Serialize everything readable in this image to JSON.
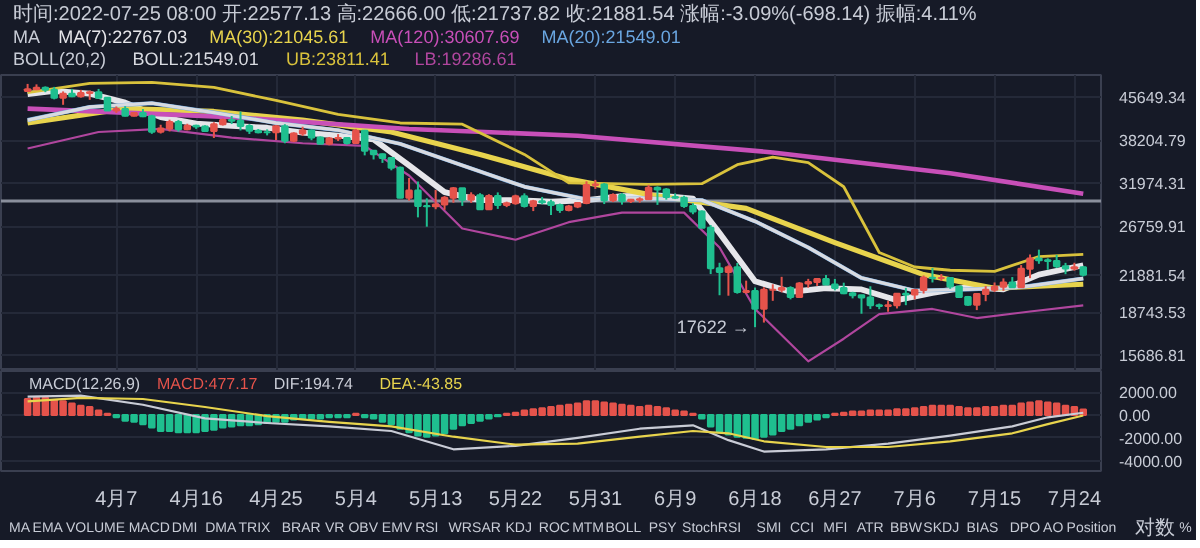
{
  "chart_data": [
    {
      "type": "candlestick",
      "annotations": [
        "时间:2022-07-25 08:00 开:22577.13 高:22666.00 低:21737.82 收:21881.54 涨幅:-3.09%(-698.14) 振幅:4.11%",
        "MA",
        "BOLL(20,2)",
        {
          "text": "17622 →",
          "x": "2022-06-18",
          "y": 17622
        }
      ],
      "x": [
        "2022-03-28",
        "2022-03-29",
        "2022-03-30",
        "2022-03-31",
        "2022-04-01",
        "2022-04-02",
        "2022-04-03",
        "2022-04-04",
        "2022-04-05",
        "2022-04-06",
        "2022-04-07",
        "2022-04-08",
        "2022-04-09",
        "2022-04-10",
        "2022-04-11",
        "2022-04-12",
        "2022-04-13",
        "2022-04-14",
        "2022-04-15",
        "2022-04-16",
        "2022-04-17",
        "2022-04-18",
        "2022-04-19",
        "2022-04-20",
        "2022-04-21",
        "2022-04-22",
        "2022-04-23",
        "2022-04-24",
        "2022-04-25",
        "2022-04-26",
        "2022-04-27",
        "2022-04-28",
        "2022-04-29",
        "2022-04-30",
        "2022-05-01",
        "2022-05-02",
        "2022-05-03",
        "2022-05-04",
        "2022-05-05",
        "2022-05-06",
        "2022-05-07",
        "2022-05-08",
        "2022-05-09",
        "2022-05-10",
        "2022-05-11",
        "2022-05-12",
        "2022-05-13",
        "2022-05-14",
        "2022-05-15",
        "2022-05-16",
        "2022-05-17",
        "2022-05-18",
        "2022-05-19",
        "2022-05-20",
        "2022-05-21",
        "2022-05-22",
        "2022-05-23",
        "2022-05-24",
        "2022-05-25",
        "2022-05-26",
        "2022-05-27",
        "2022-05-28",
        "2022-05-29",
        "2022-05-30",
        "2022-05-31",
        "2022-06-01",
        "2022-06-02",
        "2022-06-03",
        "2022-06-04",
        "2022-06-05",
        "2022-06-06",
        "2022-06-07",
        "2022-06-08",
        "2022-06-09",
        "2022-06-10",
        "2022-06-11",
        "2022-06-12",
        "2022-06-13",
        "2022-06-14",
        "2022-06-15",
        "2022-06-16",
        "2022-06-17",
        "2022-06-18",
        "2022-06-19",
        "2022-06-20",
        "2022-06-21",
        "2022-06-22",
        "2022-06-23",
        "2022-06-24",
        "2022-06-25",
        "2022-06-26",
        "2022-06-27",
        "2022-06-28",
        "2022-06-29",
        "2022-06-30",
        "2022-07-01",
        "2022-07-02",
        "2022-07-03",
        "2022-07-04",
        "2022-07-05",
        "2022-07-06",
        "2022-07-07",
        "2022-07-08",
        "2022-07-09",
        "2022-07-10",
        "2022-07-11",
        "2022-07-12",
        "2022-07-13",
        "2022-07-14",
        "2022-07-15",
        "2022-07-16",
        "2022-07-17",
        "2022-07-18",
        "2022-07-19",
        "2022-07-20",
        "2022-07-21",
        "2022-07-22",
        "2022-07-23",
        "2022-07-24",
        "2022-07-25"
      ],
      "ohlc": [
        [
          46820,
          48190,
          46660,
          47130
        ],
        [
          47130,
          48100,
          46960,
          47450
        ],
        [
          47450,
          47700,
          46570,
          47060
        ],
        [
          47060,
          47600,
          45200,
          45510
        ],
        [
          45510,
          46720,
          44200,
          46280
        ],
        [
          46280,
          47200,
          45620,
          45810
        ],
        [
          45810,
          47030,
          45530,
          46410
        ],
        [
          46410,
          46890,
          45120,
          46580
        ],
        [
          46580,
          47200,
          45350,
          45500
        ],
        [
          45500,
          45500,
          43120,
          43170
        ],
        [
          43170,
          43900,
          42730,
          43440
        ],
        [
          43440,
          43970,
          42110,
          42250
        ],
        [
          42250,
          42800,
          42130,
          42750
        ],
        [
          42750,
          43430,
          42000,
          42160
        ],
        [
          42160,
          42420,
          39200,
          39530
        ],
        [
          39530,
          40700,
          39250,
          40080
        ],
        [
          40080,
          41560,
          39590,
          41150
        ],
        [
          41150,
          41500,
          39550,
          39940
        ],
        [
          39940,
          40870,
          39770,
          40550
        ],
        [
          40550,
          40710,
          40010,
          40400
        ],
        [
          40400,
          40620,
          39550,
          39680
        ],
        [
          39680,
          41130,
          38540,
          40800
        ],
        [
          40800,
          41760,
          40570,
          41500
        ],
        [
          41500,
          42200,
          40820,
          41360
        ],
        [
          41360,
          42980,
          39750,
          40480
        ],
        [
          40480,
          40800,
          39180,
          39710
        ],
        [
          39710,
          39980,
          39280,
          39470
        ],
        [
          39470,
          39930,
          38950,
          39450
        ],
        [
          39450,
          40620,
          38200,
          40430
        ],
        [
          40430,
          40800,
          37700,
          38110
        ],
        [
          38110,
          39460,
          37880,
          39240
        ],
        [
          39240,
          40370,
          38880,
          39740
        ],
        [
          39740,
          39920,
          38180,
          38600
        ],
        [
          38600,
          38800,
          37580,
          37640
        ],
        [
          37640,
          38690,
          37390,
          38470
        ],
        [
          38470,
          39150,
          38060,
          38520
        ],
        [
          38520,
          38640,
          37500,
          37730
        ],
        [
          37730,
          40000,
          37680,
          39690
        ],
        [
          39690,
          39840,
          35860,
          36550
        ],
        [
          36550,
          36650,
          35260,
          36010
        ],
        [
          36010,
          36140,
          34760,
          35470
        ],
        [
          35470,
          35500,
          33710,
          34060
        ],
        [
          34060,
          34240,
          30030,
          30100
        ],
        [
          30100,
          32660,
          29730,
          31010
        ],
        [
          31010,
          32190,
          27750,
          29100
        ],
        [
          29100,
          30030,
          26700,
          29050
        ],
        [
          29050,
          31080,
          28700,
          29280
        ],
        [
          29280,
          30300,
          28630,
          30080
        ],
        [
          30080,
          31460,
          29480,
          31300
        ],
        [
          31300,
          31300,
          29100,
          29860
        ],
        [
          29860,
          30780,
          29460,
          30420
        ],
        [
          30420,
          30670,
          28650,
          28700
        ],
        [
          28700,
          30540,
          28690,
          30300
        ],
        [
          30300,
          30770,
          28740,
          29200
        ],
        [
          29200,
          29610,
          28950,
          29430
        ],
        [
          29430,
          30480,
          29240,
          30280
        ],
        [
          30280,
          30650,
          28900,
          29100
        ],
        [
          29100,
          29830,
          28480,
          29650
        ],
        [
          29650,
          30200,
          29300,
          29540
        ],
        [
          29540,
          29860,
          28020,
          29200
        ],
        [
          29200,
          29380,
          28270,
          28620
        ],
        [
          28620,
          29220,
          28450,
          29020
        ],
        [
          29020,
          29540,
          28830,
          29450
        ],
        [
          29450,
          32220,
          29300,
          31720
        ],
        [
          31720,
          32400,
          31220,
          31790
        ],
        [
          31790,
          31980,
          29320,
          29800
        ],
        [
          29800,
          30650,
          29570,
          30450
        ],
        [
          30450,
          30680,
          29250,
          29700
        ],
        [
          29700,
          29950,
          29450,
          29860
        ],
        [
          29860,
          30150,
          29500,
          29910
        ],
        [
          29910,
          31750,
          29880,
          31370
        ],
        [
          31370,
          31550,
          29220,
          31130
        ],
        [
          31130,
          31330,
          29860,
          30200
        ],
        [
          30200,
          30650,
          29930,
          30110
        ],
        [
          30110,
          30350,
          28860,
          29090
        ],
        [
          29090,
          29430,
          28110,
          28420
        ],
        [
          28420,
          28560,
          26560,
          26570
        ],
        [
          26570,
          26880,
          21950,
          22490
        ],
        [
          22490,
          23000,
          20110,
          22140
        ],
        [
          22140,
          22760,
          20070,
          22580
        ],
        [
          22580,
          22980,
          20240,
          20380
        ],
        [
          20380,
          21360,
          20250,
          20470
        ],
        [
          20470,
          20760,
          17622,
          19020
        ],
        [
          19020,
          20780,
          17960,
          20570
        ],
        [
          20570,
          21040,
          19650,
          20580
        ],
        [
          20580,
          21700,
          20350,
          20720
        ],
        [
          20720,
          20870,
          19770,
          19970
        ],
        [
          19970,
          21230,
          19900,
          21100
        ],
        [
          21100,
          21520,
          20740,
          21230
        ],
        [
          21230,
          21580,
          20900,
          21500
        ],
        [
          21500,
          21860,
          21000,
          21030
        ],
        [
          21030,
          21510,
          20520,
          20730
        ],
        [
          20730,
          21180,
          20200,
          20280
        ],
        [
          20280,
          20400,
          19850,
          20110
        ],
        [
          20110,
          20140,
          18630,
          19930
        ],
        [
          19930,
          20870,
          19000,
          19290
        ],
        [
          19290,
          19430,
          18980,
          19240
        ],
        [
          19240,
          19650,
          18780,
          19300
        ],
        [
          19300,
          20290,
          19040,
          20230
        ],
        [
          20230,
          20730,
          19300,
          20180
        ],
        [
          20180,
          20650,
          19770,
          20550
        ],
        [
          20550,
          21820,
          20250,
          21620
        ],
        [
          21620,
          22500,
          21200,
          21590
        ],
        [
          21590,
          21950,
          21330,
          21600
        ],
        [
          21600,
          21600,
          20650,
          20850
        ],
        [
          20850,
          20870,
          19880,
          19960
        ],
        [
          19960,
          20050,
          19250,
          19330
        ],
        [
          19330,
          20250,
          18910,
          20210
        ],
        [
          20210,
          20880,
          19620,
          20570
        ],
        [
          20570,
          21200,
          20390,
          20830
        ],
        [
          20830,
          21560,
          20480,
          21200
        ],
        [
          21200,
          21680,
          20770,
          20790
        ],
        [
          20790,
          22780,
          20760,
          22430
        ],
        [
          22430,
          23800,
          21580,
          23400
        ],
        [
          23400,
          24280,
          22900,
          23230
        ],
        [
          23230,
          23430,
          22340,
          23160
        ],
        [
          23160,
          23760,
          22500,
          22680
        ],
        [
          22680,
          22990,
          21940,
          22450
        ],
        [
          22450,
          23000,
          22260,
          22580
        ],
        [
          22577.13,
          22666,
          21737.82,
          21881.54
        ]
      ],
      "colors": [
        "#e5534b",
        "#e5534b",
        "#1fbf8f",
        "#1fbf8f",
        "#e5534b",
        "#1fbf8f",
        "#e5534b",
        "#e5534b",
        "#1fbf8f",
        "#1fbf8f",
        "#e5534b",
        "#1fbf8f",
        "#e5534b",
        "#1fbf8f",
        "#1fbf8f",
        "#e5534b",
        "#e5534b",
        "#1fbf8f",
        "#e5534b",
        "#1fbf8f",
        "#1fbf8f",
        "#e5534b",
        "#e5534b",
        "#1fbf8f",
        "#1fbf8f",
        "#1fbf8f",
        "#1fbf8f",
        "#1fbf8f",
        "#e5534b",
        "#1fbf8f",
        "#e5534b",
        "#e5534b",
        "#1fbf8f",
        "#1fbf8f",
        "#e5534b",
        "#e5534b",
        "#1fbf8f",
        "#e5534b",
        "#1fbf8f",
        "#1fbf8f",
        "#1fbf8f",
        "#1fbf8f",
        "#1fbf8f",
        "#e5534b",
        "#1fbf8f",
        "#1fbf8f",
        "#e5534b",
        "#e5534b",
        "#e5534b",
        "#1fbf8f",
        "#e5534b",
        "#1fbf8f",
        "#e5534b",
        "#1fbf8f",
        "#e5534b",
        "#e5534b",
        "#1fbf8f",
        "#e5534b",
        "#1fbf8f",
        "#1fbf8f",
        "#1fbf8f",
        "#e5534b",
        "#e5534b",
        "#e5534b",
        "#e5534b",
        "#1fbf8f",
        "#e5534b",
        "#1fbf8f",
        "#e5534b",
        "#e5534b",
        "#e5534b",
        "#1fbf8f",
        "#1fbf8f",
        "#1fbf8f",
        "#1fbf8f",
        "#1fbf8f",
        "#1fbf8f",
        "#1fbf8f",
        "#1fbf8f",
        "#e5534b",
        "#1fbf8f",
        "#e5534b",
        "#1fbf8f",
        "#e5534b",
        "#e5534b",
        "#e5534b",
        "#1fbf8f",
        "#e5534b",
        "#e5534b",
        "#e5534b",
        "#1fbf8f",
        "#1fbf8f",
        "#1fbf8f",
        "#1fbf8f",
        "#1fbf8f",
        "#1fbf8f",
        "#1fbf8f",
        "#e5534b",
        "#e5534b",
        "#1fbf8f",
        "#e5534b",
        "#e5534b",
        "#1fbf8f",
        "#e5534b",
        "#1fbf8f",
        "#1fbf8f",
        "#1fbf8f",
        "#e5534b",
        "#e5534b",
        "#e5534b",
        "#e5534b",
        "#1fbf8f",
        "#e5534b",
        "#e5534b",
        "#1fbf8f",
        "#1fbf8f",
        "#1fbf8f",
        "#1fbf8f",
        "#e5534b",
        "#1fbf8f"
      ],
      "series": [
        {
          "name": "MA(7):22767.03",
          "type": "line",
          "color": "#e6e6ea",
          "x": [
            "2022-03-28",
            "2022-03-31",
            "2022-04-04",
            "2022-04-08",
            "2022-04-12",
            "2022-04-16",
            "2022-04-20",
            "2022-04-24",
            "2022-04-28",
            "2022-05-02",
            "2022-05-06",
            "2022-05-10",
            "2022-05-14",
            "2022-05-18",
            "2022-05-22",
            "2022-05-26",
            "2022-05-30",
            "2022-06-03",
            "2022-06-07",
            "2022-06-11",
            "2022-06-14",
            "2022-06-18",
            "2022-06-22",
            "2022-06-26",
            "2022-06-30",
            "2022-07-04",
            "2022-07-08",
            "2022-07-12",
            "2022-07-16",
            "2022-07-20",
            "2022-07-25"
          ],
          "values": [
            46200,
            46800,
            46300,
            44600,
            42000,
            40900,
            40500,
            40200,
            39400,
            38900,
            38300,
            34400,
            30800,
            29800,
            29800,
            29600,
            29800,
            30300,
            30400,
            30000,
            26000,
            21300,
            20400,
            20700,
            20600,
            19700,
            20300,
            20800,
            20600,
            21900,
            22767.03
          ]
        },
        {
          "name": "MA(30):21045.61",
          "type": "line",
          "color": "#e8d44d",
          "x": [
            "2022-03-28",
            "2022-04-08",
            "2022-04-18",
            "2022-04-28",
            "2022-05-08",
            "2022-05-18",
            "2022-05-28",
            "2022-06-07",
            "2022-06-17",
            "2022-06-27",
            "2022-07-07",
            "2022-07-15",
            "2022-07-25"
          ],
          "values": [
            41000,
            43500,
            43000,
            41500,
            39500,
            36000,
            32500,
            30300,
            28800,
            25000,
            21900,
            20700,
            21045.61
          ]
        },
        {
          "name": "MA(120):30607.69",
          "type": "line",
          "color": "#c84fb8",
          "x": [
            "2022-03-28",
            "2022-04-20",
            "2022-05-10",
            "2022-05-29",
            "2022-06-20",
            "2022-07-10",
            "2022-07-25"
          ],
          "values": [
            43500,
            42000,
            40000,
            38900,
            36300,
            33300,
            30607.69
          ]
        },
        {
          "name": "MA(20):21549.01",
          "type": "line",
          "color": "#6aa6e0",
          "x": [
            "2022-03-28",
            "2022-04-04",
            "2022-04-11",
            "2022-04-18",
            "2022-04-25",
            "2022-05-02",
            "2022-05-09",
            "2022-05-16",
            "2022-05-23",
            "2022-05-30",
            "2022-06-06",
            "2022-06-12",
            "2022-06-18",
            "2022-06-24",
            "2022-06-30",
            "2022-07-06",
            "2022-07-12",
            "2022-07-18",
            "2022-07-25"
          ],
          "values": [
            41500,
            43800,
            44500,
            42800,
            41000,
            39800,
            37600,
            34400,
            31500,
            29900,
            30000,
            29800,
            27300,
            24500,
            21600,
            20500,
            20600,
            20800,
            21549.01
          ]
        },
        {
          "name": "BOLL:21549.01",
          "type": "line",
          "color": "#d8dae0",
          "x": [
            "2022-03-28",
            "2022-04-04",
            "2022-04-11",
            "2022-04-18",
            "2022-04-25",
            "2022-05-02",
            "2022-05-09",
            "2022-05-16",
            "2022-05-23",
            "2022-05-30",
            "2022-06-06",
            "2022-06-12",
            "2022-06-18",
            "2022-06-24",
            "2022-06-30",
            "2022-07-06",
            "2022-07-12",
            "2022-07-18",
            "2022-07-25"
          ],
          "values": [
            41500,
            43800,
            44500,
            42800,
            41000,
            39800,
            37600,
            34400,
            31500,
            29900,
            30000,
            29800,
            27300,
            24500,
            21600,
            20500,
            20600,
            20800,
            21549.01
          ]
        },
        {
          "name": "UB:23811.41",
          "type": "line",
          "color": "#d9c23c",
          "x": [
            "2022-03-28",
            "2022-04-04",
            "2022-04-11",
            "2022-04-18",
            "2022-04-25",
            "2022-05-02",
            "2022-05-09",
            "2022-05-16",
            "2022-05-23",
            "2022-05-28",
            "2022-06-06",
            "2022-06-12",
            "2022-06-16",
            "2022-06-20",
            "2022-06-24",
            "2022-06-28",
            "2022-07-02",
            "2022-07-06",
            "2022-07-10",
            "2022-07-15",
            "2022-07-20",
            "2022-07-25"
          ],
          "values": [
            46500,
            48300,
            48500,
            47500,
            45000,
            42500,
            41000,
            40800,
            36000,
            32000,
            31800,
            31900,
            34500,
            35600,
            34800,
            31500,
            24000,
            22600,
            22300,
            22200,
            23600,
            23811.41
          ]
        },
        {
          "name": "LB:19286.61",
          "type": "line",
          "color": "#b0469e",
          "x": [
            "2022-03-28",
            "2022-04-05",
            "2022-04-12",
            "2022-04-20",
            "2022-04-28",
            "2022-05-05",
            "2022-05-10",
            "2022-05-16",
            "2022-05-22",
            "2022-05-28",
            "2022-06-03",
            "2022-06-10",
            "2022-06-14",
            "2022-06-18",
            "2022-06-24",
            "2022-06-28",
            "2022-07-02",
            "2022-07-08",
            "2022-07-13",
            "2022-07-19",
            "2022-07-25"
          ],
          "values": [
            36900,
            39500,
            40000,
            38600,
            37700,
            37300,
            33000,
            26500,
            25300,
            27200,
            28300,
            28300,
            24500,
            19000,
            15300,
            16800,
            18600,
            19000,
            18300,
            18800,
            19286.61
          ]
        }
      ],
      "ref_lines": [
        {
          "axis": "y",
          "value": 29700,
          "color": "#8a8f9c"
        }
      ],
      "xlim": [
        "2022-03-25",
        "2022-07-27"
      ],
      "xticks": [
        {
          "value": "2022-04-07",
          "label": null
        },
        {
          "value": "2022-04-16",
          "label": null
        },
        {
          "value": "2022-04-25",
          "label": null
        },
        {
          "value": "2022-05-04",
          "label": null
        },
        {
          "value": "2022-05-13",
          "label": null
        },
        {
          "value": "2022-05-22",
          "label": null
        },
        {
          "value": "2022-05-31",
          "label": null
        },
        {
          "value": "2022-06-09",
          "label": null
        },
        {
          "value": "2022-06-18",
          "label": null
        },
        {
          "value": "2022-06-27",
          "label": null
        },
        {
          "value": "2022-07-06",
          "label": null
        },
        {
          "value": "2022-07-15",
          "label": null
        },
        {
          "value": "2022-07-24",
          "label": null
        }
      ],
      "ylim": [
        14700,
        50000
      ],
      "yticks": [
        45649.34,
        38204.79,
        31974.31,
        26759.91,
        21881.54,
        18743.53,
        15686.81
      ],
      "log": true,
      "grid": true,
      "tick_labels": "y"
    },
    {
      "type": "bar",
      "title": "MACD(12,26,9)",
      "annotations": [
        "MA",
        "EMA",
        "VOLUME",
        "MACD",
        "DMI",
        "DMA",
        "TRIX",
        "BRAR",
        "VR",
        "OBV",
        "EMV",
        "RSI",
        "WR",
        "SAR",
        "KDJ",
        "ROC",
        "MTM",
        "BOLL",
        "PSY",
        "StochRSI",
        "SMI",
        "CCI",
        "MFI",
        "ATR",
        "BBW",
        "SKDJ",
        "BIAS",
        "DPO",
        "AO",
        "Position",
        "对数",
        "%"
      ],
      "x": [
        "2022-03-28",
        "2022-03-29",
        "2022-03-30",
        "2022-03-31",
        "2022-04-01",
        "2022-04-02",
        "2022-04-03",
        "2022-04-04",
        "2022-04-05",
        "2022-04-06",
        "2022-04-07",
        "2022-04-08",
        "2022-04-09",
        "2022-04-10",
        "2022-04-11",
        "2022-04-12",
        "2022-04-13",
        "2022-04-14",
        "2022-04-15",
        "2022-04-16",
        "2022-04-17",
        "2022-04-18",
        "2022-04-19",
        "2022-04-20",
        "2022-04-21",
        "2022-04-22",
        "2022-04-23",
        "2022-04-24",
        "2022-04-25",
        "2022-04-26",
        "2022-04-27",
        "2022-04-28",
        "2022-04-29",
        "2022-04-30",
        "2022-05-01",
        "2022-05-02",
        "2022-05-03",
        "2022-05-04",
        "2022-05-05",
        "2022-05-06",
        "2022-05-07",
        "2022-05-08",
        "2022-05-09",
        "2022-05-10",
        "2022-05-11",
        "2022-05-12",
        "2022-05-13",
        "2022-05-14",
        "2022-05-15",
        "2022-05-16",
        "2022-05-17",
        "2022-05-18",
        "2022-05-19",
        "2022-05-20",
        "2022-05-21",
        "2022-05-22",
        "2022-05-23",
        "2022-05-24",
        "2022-05-25",
        "2022-05-26",
        "2022-05-27",
        "2022-05-28",
        "2022-05-29",
        "2022-05-30",
        "2022-05-31",
        "2022-06-01",
        "2022-06-02",
        "2022-06-03",
        "2022-06-04",
        "2022-06-05",
        "2022-06-06",
        "2022-06-07",
        "2022-06-08",
        "2022-06-09",
        "2022-06-10",
        "2022-06-11",
        "2022-06-12",
        "2022-06-13",
        "2022-06-14",
        "2022-06-15",
        "2022-06-16",
        "2022-06-17",
        "2022-06-18",
        "2022-06-19",
        "2022-06-20",
        "2022-06-21",
        "2022-06-22",
        "2022-06-23",
        "2022-06-24",
        "2022-06-25",
        "2022-06-26",
        "2022-06-27",
        "2022-06-28",
        "2022-06-29",
        "2022-06-30",
        "2022-07-01",
        "2022-07-02",
        "2022-07-03",
        "2022-07-04",
        "2022-07-05",
        "2022-07-06",
        "2022-07-07",
        "2022-07-08",
        "2022-07-09",
        "2022-07-10",
        "2022-07-11",
        "2022-07-12",
        "2022-07-13",
        "2022-07-14",
        "2022-07-15",
        "2022-07-16",
        "2022-07-17",
        "2022-07-18",
        "2022-07-19",
        "2022-07-20",
        "2022-07-21",
        "2022-07-22",
        "2022-07-23",
        "2022-07-24",
        "2022-07-25"
      ],
      "series": [
        {
          "name": "MACD:477.17",
          "type": "bar",
          "color": "#e5534b",
          "values": [
            1400,
            1500,
            1500,
            1300,
            1200,
            1000,
            800,
            700,
            400,
            100,
            -200,
            -500,
            -600,
            -800,
            -1100,
            -1400,
            -1400,
            -1500,
            -1500,
            -1500,
            -1400,
            -1300,
            -1100,
            -1000,
            -900,
            -900,
            -800,
            -700,
            -600,
            -600,
            -400,
            -300,
            -300,
            -300,
            -200,
            -200,
            -200,
            100,
            -200,
            -300,
            -600,
            -800,
            -1200,
            -1500,
            -1800,
            -1900,
            -1800,
            -1600,
            -1200,
            -900,
            -700,
            -500,
            -300,
            -100,
            100,
            200,
            400,
            500,
            600,
            700,
            800,
            900,
            1000,
            1200,
            1200,
            1100,
            1000,
            900,
            800,
            700,
            800,
            700,
            600,
            400,
            300,
            100,
            -300,
            -1000,
            -1500,
            -1700,
            -1900,
            -2000,
            -2100,
            -1900,
            -1700,
            -1400,
            -1200,
            -900,
            -600,
            -400,
            -200,
            100,
            200,
            300,
            300,
            400,
            400,
            400,
            500,
            500,
            600,
            700,
            800,
            800,
            800,
            700,
            600,
            600,
            700,
            700,
            800,
            800,
            1000,
            1100,
            1200,
            1100,
            1000,
            800,
            700,
            477.17
          ],
          "colors": [
            "#e5534b",
            "#e5534b",
            "#e5534b",
            "#e5534b",
            "#e5534b",
            "#e5534b",
            "#e5534b",
            "#e5534b",
            "#e5534b",
            "#e5534b",
            "#1fbf8f",
            "#1fbf8f",
            "#1fbf8f",
            "#1fbf8f",
            "#1fbf8f",
            "#1fbf8f",
            "#1fbf8f",
            "#1fbf8f",
            "#1fbf8f",
            "#1fbf8f",
            "#1fbf8f",
            "#1fbf8f",
            "#1fbf8f",
            "#1fbf8f",
            "#1fbf8f",
            "#1fbf8f",
            "#1fbf8f",
            "#1fbf8f",
            "#1fbf8f",
            "#1fbf8f",
            "#1fbf8f",
            "#1fbf8f",
            "#1fbf8f",
            "#1fbf8f",
            "#1fbf8f",
            "#1fbf8f",
            "#1fbf8f",
            "#e5534b",
            "#1fbf8f",
            "#1fbf8f",
            "#1fbf8f",
            "#1fbf8f",
            "#1fbf8f",
            "#1fbf8f",
            "#1fbf8f",
            "#1fbf8f",
            "#1fbf8f",
            "#1fbf8f",
            "#1fbf8f",
            "#1fbf8f",
            "#1fbf8f",
            "#1fbf8f",
            "#1fbf8f",
            "#1fbf8f",
            "#e5534b",
            "#e5534b",
            "#e5534b",
            "#e5534b",
            "#e5534b",
            "#e5534b",
            "#e5534b",
            "#e5534b",
            "#e5534b",
            "#e5534b",
            "#e5534b",
            "#e5534b",
            "#e5534b",
            "#e5534b",
            "#e5534b",
            "#e5534b",
            "#e5534b",
            "#e5534b",
            "#e5534b",
            "#e5534b",
            "#e5534b",
            "#e5534b",
            "#1fbf8f",
            "#1fbf8f",
            "#1fbf8f",
            "#1fbf8f",
            "#1fbf8f",
            "#1fbf8f",
            "#1fbf8f",
            "#1fbf8f",
            "#1fbf8f",
            "#1fbf8f",
            "#1fbf8f",
            "#1fbf8f",
            "#1fbf8f",
            "#1fbf8f",
            "#1fbf8f",
            "#e5534b",
            "#e5534b",
            "#e5534b",
            "#e5534b",
            "#e5534b",
            "#e5534b",
            "#e5534b",
            "#e5534b",
            "#e5534b",
            "#e5534b",
            "#e5534b",
            "#e5534b",
            "#e5534b",
            "#e5534b",
            "#e5534b",
            "#e5534b",
            "#e5534b",
            "#e5534b",
            "#e5534b",
            "#e5534b",
            "#e5534b",
            "#e5534b",
            "#e5534b",
            "#e5534b",
            "#e5534b",
            "#e5534b",
            "#e5534b",
            "#e5534b",
            "#e5534b"
          ]
        },
        {
          "name": "DIF:194.74",
          "type": "line",
          "color": "#c9ccd6",
          "x": [
            "2022-03-28",
            "2022-04-03",
            "2022-04-10",
            "2022-04-17",
            "2022-04-24",
            "2022-05-01",
            "2022-05-08",
            "2022-05-15",
            "2022-05-22",
            "2022-05-29",
            "2022-06-05",
            "2022-06-11",
            "2022-06-15",
            "2022-06-19",
            "2022-06-26",
            "2022-07-03",
            "2022-07-10",
            "2022-07-17",
            "2022-07-21",
            "2022-07-25"
          ],
          "values": [
            1600,
            1700,
            900,
            -300,
            -700,
            -1000,
            -1400,
            -3000,
            -2700,
            -2000,
            -1200,
            -900,
            -2200,
            -3200,
            -3000,
            -2500,
            -1800,
            -1000,
            -200,
            194.74
          ]
        },
        {
          "name": "DEA:-43.85",
          "type": "line",
          "color": "#e8d44d",
          "x": [
            "2022-03-28",
            "2022-04-03",
            "2022-04-10",
            "2022-04-17",
            "2022-04-24",
            "2022-05-01",
            "2022-05-08",
            "2022-05-15",
            "2022-05-22",
            "2022-05-29",
            "2022-06-05",
            "2022-06-11",
            "2022-06-15",
            "2022-06-19",
            "2022-06-26",
            "2022-07-03",
            "2022-07-10",
            "2022-07-17",
            "2022-07-21",
            "2022-07-25"
          ],
          "values": [
            1200,
            1500,
            1400,
            700,
            -100,
            -600,
            -1000,
            -1900,
            -2600,
            -2500,
            -1900,
            -1400,
            -1600,
            -2300,
            -2800,
            -2800,
            -2300,
            -1600,
            -800,
            -43.85
          ]
        }
      ],
      "xlim": [
        "2022-03-25",
        "2022-07-27"
      ],
      "xticks": [
        {
          "value": "2022-04-07",
          "label": "4月7"
        },
        {
          "value": "2022-04-16",
          "label": "4月16"
        },
        {
          "value": "2022-04-25",
          "label": "4月25"
        },
        {
          "value": "2022-05-04",
          "label": "5月4"
        },
        {
          "value": "2022-05-13",
          "label": "5月13"
        },
        {
          "value": "2022-05-22",
          "label": "5月22"
        },
        {
          "value": "2022-05-31",
          "label": "5月31"
        },
        {
          "value": "2022-06-09",
          "label": "6月9"
        },
        {
          "value": "2022-06-18",
          "label": "6月18"
        },
        {
          "value": "2022-06-27",
          "label": "6月27"
        },
        {
          "value": "2022-07-06",
          "label": "7月6"
        },
        {
          "value": "2022-07-15",
          "label": "7月15"
        },
        {
          "value": "2022-07-24",
          "label": "7月24"
        }
      ],
      "ylim": [
        -4900,
        3850
      ],
      "yticks": [
        {
          "value": 2000,
          "label": "2000.00"
        },
        {
          "value": 0,
          "label": "0.00"
        },
        {
          "value": -2000,
          "label": "-2000.00"
        },
        {
          "value": -4000,
          "label": "-4000.00"
        }
      ],
      "grid": "y"
    }
  ]
}
